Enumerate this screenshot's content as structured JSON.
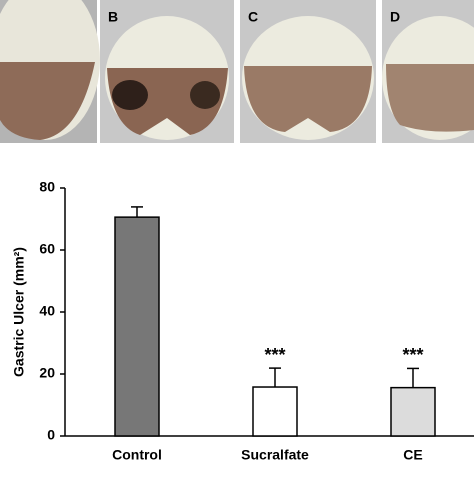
{
  "panel_labels": [
    "B",
    "C",
    "D"
  ],
  "chart_data": {
    "type": "bar",
    "y_label": "Gastric Ulcer (mm²)",
    "categories": [
      "Control",
      "Sucralfate",
      "CE"
    ],
    "values": [
      70.6,
      15.8,
      15.6
    ],
    "errors": [
      3.3,
      6.1,
      6.2
    ],
    "colors": [
      "#777777",
      "#ffffff",
      "#dcdcdc"
    ],
    "ylim": [
      0,
      80
    ],
    "yticks": [
      0,
      20,
      40,
      60,
      80
    ],
    "annotations": [
      {
        "text": "***",
        "x": "Sucralfate"
      },
      {
        "text": "***",
        "x": "CE"
      }
    ]
  }
}
